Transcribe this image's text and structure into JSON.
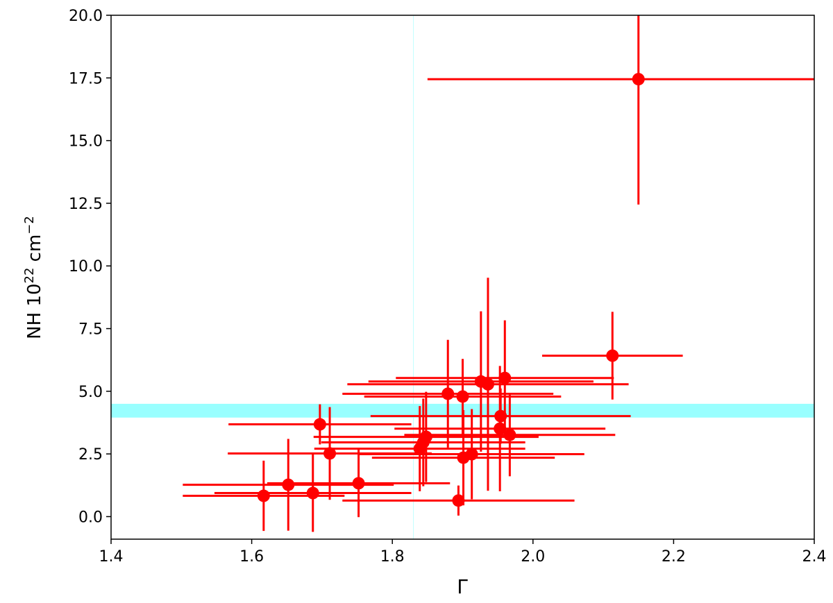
{
  "chart_data": {
    "type": "scatter",
    "xlabel": "Γ",
    "ylabel": [
      "NH 10",
      "22",
      " cm",
      "−2"
    ],
    "color": "#ff0000",
    "x": [
      1.617,
      1.652,
      1.687,
      1.752,
      1.697,
      1.711,
      1.894,
      1.879,
      1.9,
      1.926,
      1.936,
      1.96,
      2.113,
      2.15,
      1.954,
      1.953,
      1.967,
      1.844,
      1.839,
      1.848,
      1.901,
      1.913
    ],
    "y": [
      0.83,
      1.27,
      0.94,
      1.33,
      3.68,
      2.52,
      0.64,
      4.9,
      4.79,
      5.39,
      5.28,
      5.53,
      6.42,
      17.45,
      4.01,
      3.51,
      3.26,
      2.96,
      2.71,
      3.18,
      2.35,
      2.49
    ],
    "xerr": [
      0.115,
      0.15,
      0.14,
      0.13,
      0.13,
      0.145,
      0.165,
      0.15,
      0.14,
      0.16,
      0.2,
      0.155,
      0.1,
      0.3,
      0.185,
      0.15,
      0.15,
      0.145,
      0.15,
      0.16,
      0.13,
      0.16
    ],
    "yerr": [
      1.4,
      1.83,
      1.55,
      1.35,
      0.8,
      1.85,
      0.6,
      2.15,
      1.5,
      2.8,
      4.25,
      2.3,
      1.75,
      5.0,
      1.1,
      2.5,
      1.65,
      1.75,
      1.7,
      1.8,
      1.9,
      1.8
    ],
    "hband": [
      3.95,
      4.5
    ],
    "vline": 1.83,
    "band_color": "#99ffff",
    "xlim": [
      1.4,
      2.4
    ],
    "ylim": [
      -0.9,
      20
    ],
    "xticks": [
      1.4,
      1.6,
      1.8,
      {
        "value": 2,
        "label": "2.0"
      },
      2.2,
      2.4
    ],
    "yticks": [
      {
        "value": 0,
        "label": "0.0"
      },
      2.5,
      {
        "value": 5,
        "label": "5.0"
      },
      7.5,
      {
        "value": 10,
        "label": "10.0"
      },
      12.5,
      {
        "value": 15,
        "label": "15.0"
      },
      17.5,
      {
        "value": 20,
        "label": "20.0"
      }
    ]
  }
}
